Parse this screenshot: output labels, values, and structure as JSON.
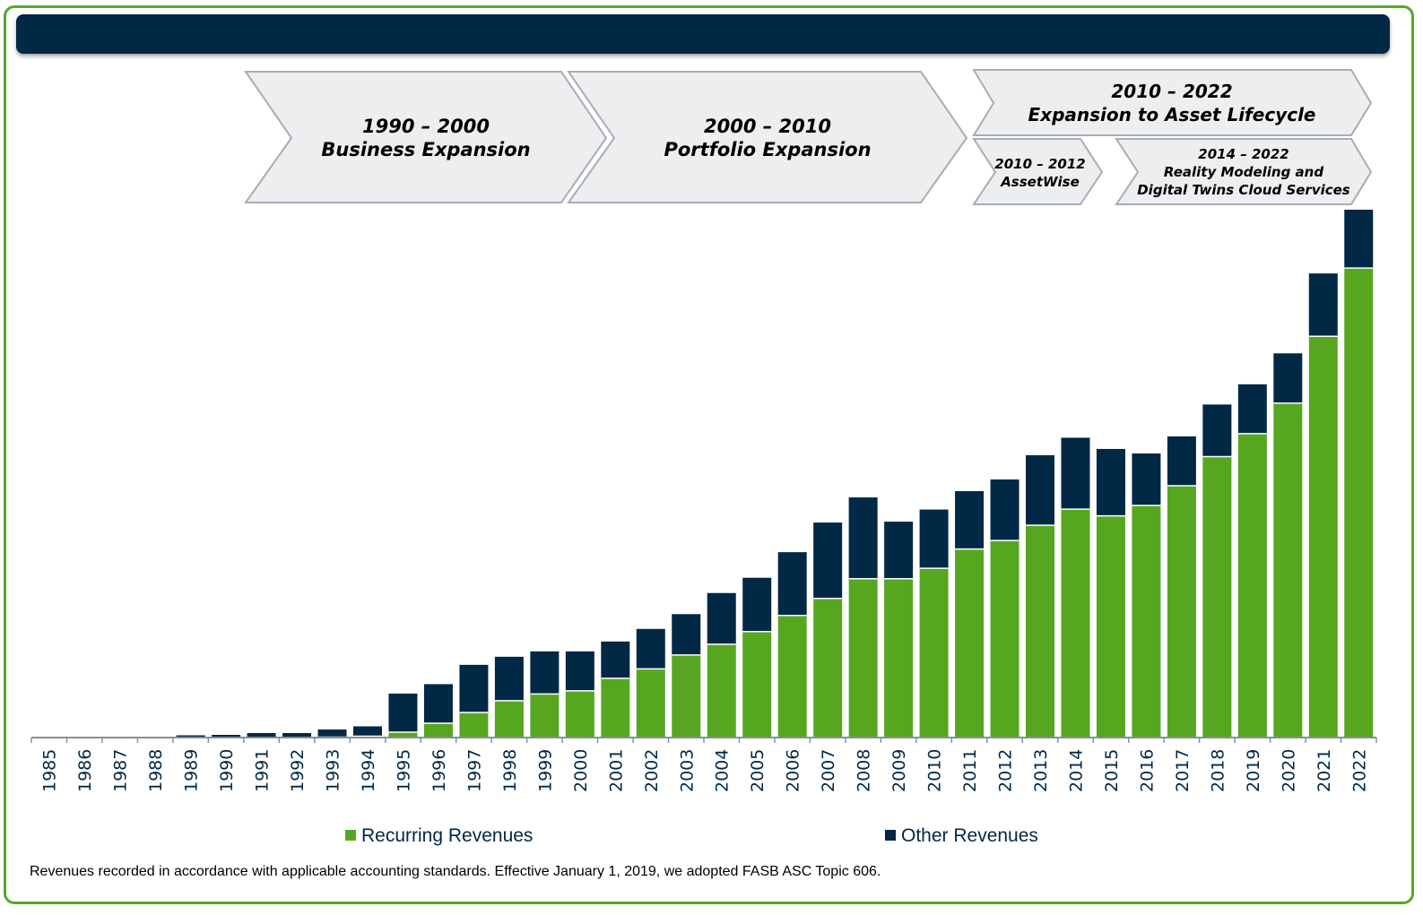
{
  "header": {
    "title": ""
  },
  "phases": [
    {
      "id": "p1",
      "label_line1": "1990 – 2000",
      "label_line2": "Business Expansion"
    },
    {
      "id": "p2",
      "label_line1": "2000 – 2010",
      "label_line2": "Portfolio Expansion"
    },
    {
      "id": "p3",
      "label_line1": "2010 – 2022",
      "label_line2": "Expansion to Asset Lifecycle"
    },
    {
      "id": "p3a",
      "label_line1": "2010 – 2012",
      "label_line2": "AssetWise"
    },
    {
      "id": "p3b",
      "label_line1": "2014 – 2022",
      "label_line2": "Reality Modeling and",
      "label_line3": "Digital Twins Cloud Services"
    }
  ],
  "legend": {
    "recurring": "Recurring Revenues",
    "other": "Other Revenues"
  },
  "footnote": "Revenues recorded in accordance with applicable accounting standards. Effective January 1, 2019, we adopted FASB ASC Topic 606.",
  "colors": {
    "recurring": "#57a620",
    "other": "#012845",
    "frame": "#5aa52a"
  },
  "chart_data": {
    "type": "bar",
    "stacked": true,
    "title": "",
    "xlabel": "",
    "ylabel": "",
    "ylim": [
      0,
      1180
    ],
    "categories": [
      "1985",
      "1986",
      "1987",
      "1988",
      "1989",
      "1990",
      "1991",
      "1992",
      "1993",
      "1994",
      "1995",
      "1996",
      "1997",
      "1998",
      "1999",
      "2000",
      "2001",
      "2002",
      "2003",
      "2004",
      "2005",
      "2006",
      "2007",
      "2008",
      "2009",
      "2010",
      "2011",
      "2012",
      "2013",
      "2014",
      "2015",
      "2016",
      "2017",
      "2018",
      "2019",
      "2020",
      "2021",
      "2022"
    ],
    "series": [
      {
        "name": "Recurring Revenues",
        "values": [
          0,
          0,
          0,
          0,
          0,
          0,
          0,
          0,
          1,
          3,
          12,
          32,
          56,
          82,
          97,
          104,
          132,
          153,
          184,
          208,
          236,
          272,
          310,
          354,
          354,
          377,
          420,
          439,
          473,
          509,
          494,
          517,
          561,
          626,
          677,
          745,
          894,
          1046
        ]
      },
      {
        "name": "Other Revenues",
        "values": [
          0,
          0,
          0,
          0,
          5,
          6,
          10,
          10,
          17,
          22,
          86,
          87,
          106,
          98,
          95,
          88,
          82,
          89,
          91,
          114,
          120,
          141,
          169,
          181,
          127,
          131,
          129,
          136,
          156,
          159,
          149,
          116,
          110,
          116,
          110,
          111,
          140,
          130
        ]
      }
    ]
  }
}
